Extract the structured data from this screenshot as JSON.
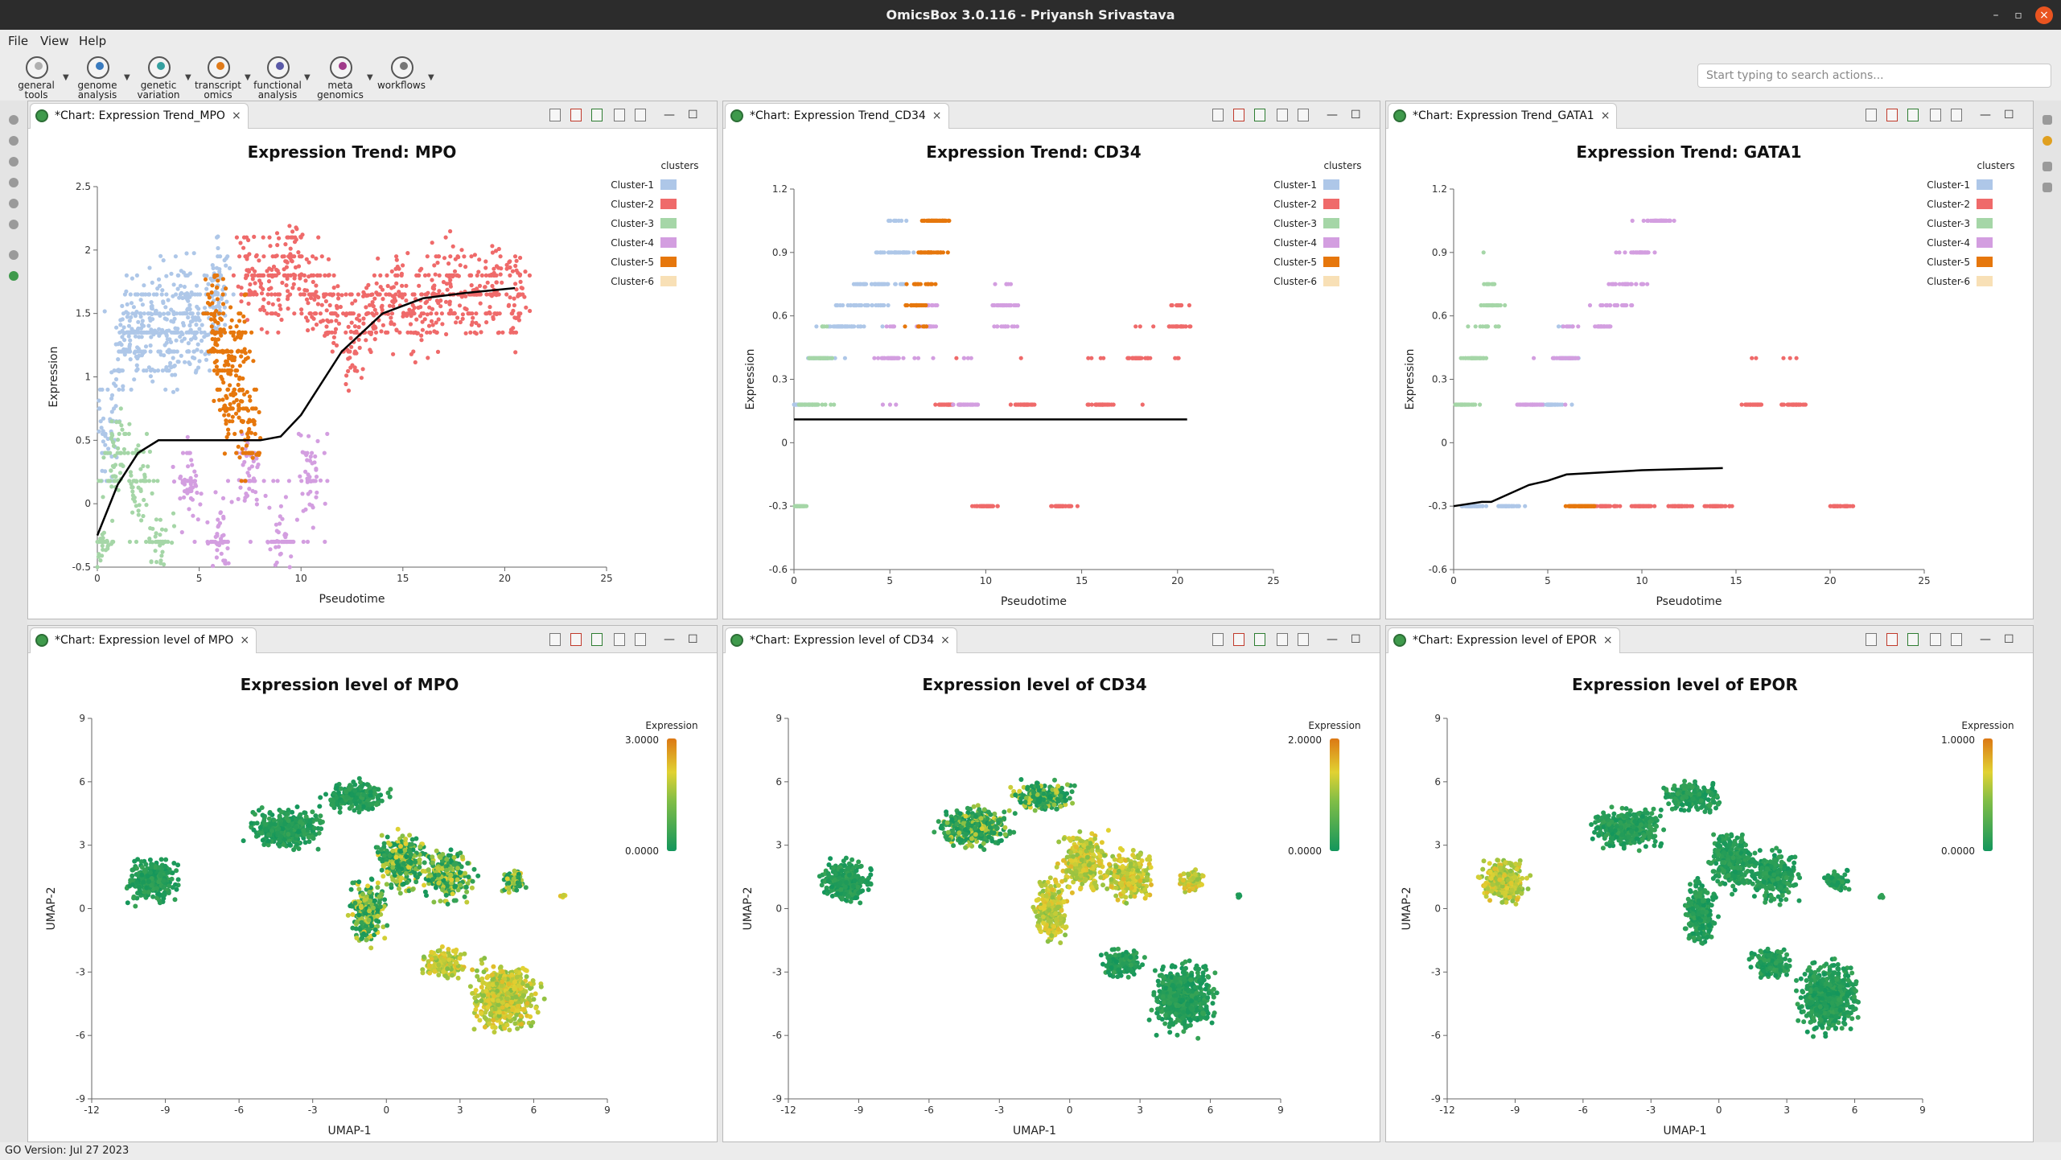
{
  "window": {
    "title": "OmicsBox 3.0.116 - Priyansh Srivastava"
  },
  "menu": [
    "File",
    "View",
    "Help"
  ],
  "toolbar": [
    {
      "l1": "general",
      "l2": "tools",
      "color": "#b0b0b0"
    },
    {
      "l1": "genome",
      "l2": "analysis",
      "color": "#3a7bbf"
    },
    {
      "l1": "genetic",
      "l2": "variation",
      "color": "#35a0a0"
    },
    {
      "l1": "transcript",
      "l2": "omics",
      "color": "#e07b1a"
    },
    {
      "l1": "functional",
      "l2": "analysis",
      "color": "#5a5aa8"
    },
    {
      "l1": "meta",
      "l2": "genomics",
      "color": "#a03a8a"
    },
    {
      "l1": "workflows",
      "l2": "",
      "color": "#777777"
    }
  ],
  "search": {
    "placeholder": "Start typing to search actions..."
  },
  "status": "GO Version: Jul 27 2023",
  "panels": [
    {
      "tab": "*Chart: Expression Trend_MPO"
    },
    {
      "tab": "*Chart: Expression Trend_CD34"
    },
    {
      "tab": "*Chart: Expression Trend_GATA1"
    },
    {
      "tab": "*Chart: Expression level of MPO"
    },
    {
      "tab": "*Chart: Expression level of CD34"
    },
    {
      "tab": "*Chart: Expression level of EPOR"
    }
  ],
  "chart_data": [
    {
      "type": "scatter",
      "title": "Expression Trend: MPO",
      "xlabel": "Pseudotime",
      "ylabel": "Expression",
      "xlim": [
        0,
        25
      ],
      "ylim": [
        -0.5,
        2.5
      ],
      "xticks": [
        "0",
        "5",
        "10",
        "15",
        "20",
        "25"
      ],
      "yticks": [
        "-0.5",
        "0",
        "0.5",
        "1",
        "1.5",
        "2",
        "2.5"
      ],
      "legend_title": "clusters",
      "legend_position": "top-right",
      "legend": [
        {
          "name": "Cluster-1",
          "color": "#aec7e8"
        },
        {
          "name": "Cluster-2",
          "color": "#ef6a6a"
        },
        {
          "name": "Cluster-3",
          "color": "#a5d6a7"
        },
        {
          "name": "Cluster-4",
          "color": "#d39ee0"
        },
        {
          "name": "Cluster-5",
          "color": "#e6770c"
        },
        {
          "name": "Cluster-6",
          "color": "#f8e0b6"
        }
      ],
      "series": [
        {
          "name": "Cluster-1",
          "x": [
            0.5,
            1.2,
            1.8,
            2.4,
            3.0,
            3.6,
            4.2,
            4.8,
            5.5,
            6.0
          ],
          "y": [
            0.55,
            1.2,
            1.4,
            1.3,
            1.5,
            1.25,
            1.6,
            1.35,
            1.5,
            1.7
          ]
        },
        {
          "name": "Cluster-2",
          "x": [
            7.5,
            8.5,
            9.5,
            10.5,
            11.5,
            12.5,
            13.5,
            14.5,
            15.5,
            16.5,
            17.5,
            18.5,
            19.5,
            20.5
          ],
          "y": [
            1.8,
            1.7,
            1.9,
            1.7,
            1.5,
            1.3,
            1.5,
            1.6,
            1.55,
            1.6,
            1.75,
            1.65,
            1.7,
            1.6
          ]
        },
        {
          "name": "Cluster-3",
          "x": [
            0.2,
            1.0,
            2.0,
            3.0
          ],
          "y": [
            -0.3,
            0.4,
            0.18,
            -0.3
          ]
        },
        {
          "name": "Cluster-4",
          "x": [
            4.5,
            6.0,
            7.5,
            9.0,
            10.5
          ],
          "y": [
            0.18,
            -0.3,
            0.18,
            -0.3,
            0.18
          ]
        },
        {
          "name": "Cluster-5",
          "x": [
            5.8,
            6.2,
            6.6,
            7.0,
            7.4
          ],
          "y": [
            1.5,
            1.1,
            0.8,
            1.3,
            0.55
          ]
        }
      ],
      "trend": {
        "x": [
          0,
          1,
          2,
          3,
          4,
          6,
          8,
          9,
          10,
          12,
          14,
          16,
          18,
          20.5
        ],
        "y": [
          -0.25,
          0.15,
          0.4,
          0.5,
          0.5,
          0.5,
          0.5,
          0.53,
          0.7,
          1.2,
          1.5,
          1.62,
          1.66,
          1.7
        ]
      }
    },
    {
      "type": "scatter",
      "title": "Expression Trend: CD34",
      "xlabel": "Pseudotime",
      "ylabel": "Expression",
      "xlim": [
        0,
        25
      ],
      "ylim": [
        -0.6,
        1.2
      ],
      "xticks": [
        "0",
        "5",
        "10",
        "15",
        "20",
        "25"
      ],
      "yticks": [
        "-0.6",
        "-0.3",
        "0",
        "0.3",
        "0.6",
        "0.9",
        "1.2"
      ],
      "legend_title": "clusters",
      "legend_position": "top-right",
      "legend": [
        {
          "name": "Cluster-1",
          "color": "#aec7e8"
        },
        {
          "name": "Cluster-2",
          "color": "#ef6a6a"
        },
        {
          "name": "Cluster-3",
          "color": "#a5d6a7"
        },
        {
          "name": "Cluster-4",
          "color": "#d39ee0"
        },
        {
          "name": "Cluster-5",
          "color": "#e6770c"
        },
        {
          "name": "Cluster-6",
          "color": "#f8e0b6"
        }
      ],
      "series": [
        {
          "name": "Cluster-1",
          "x": [
            0.5,
            1.5,
            2.5,
            3.5,
            4.5,
            5.5
          ],
          "y": [
            0.18,
            0.4,
            0.55,
            0.65,
            0.75,
            0.9
          ]
        },
        {
          "name": "Cluster-2",
          "x": [
            8,
            10,
            12,
            14,
            16,
            18,
            20
          ],
          "y": [
            0.18,
            -0.3,
            0.18,
            -0.3,
            0.18,
            0.4,
            0.55
          ]
        },
        {
          "name": "Cluster-3",
          "x": [
            0.2,
            0.8,
            1.4
          ],
          "y": [
            -0.3,
            0.18,
            0.4
          ]
        },
        {
          "name": "Cluster-4",
          "x": [
            5,
            7,
            9,
            11
          ],
          "y": [
            0.4,
            0.55,
            0.18,
            0.65
          ]
        },
        {
          "name": "Cluster-5",
          "x": [
            6.5,
            7.0,
            7.5
          ],
          "y": [
            0.65,
            0.9,
            1.05
          ]
        }
      ],
      "trend": {
        "x": [
          0,
          20.5
        ],
        "y": [
          0.11,
          0.11
        ]
      }
    },
    {
      "type": "scatter",
      "title": "Expression Trend: GATA1",
      "xlabel": "Pseudotime",
      "ylabel": "Expression",
      "xlim": [
        0,
        25
      ],
      "ylim": [
        -0.6,
        1.2
      ],
      "xticks": [
        "0",
        "5",
        "10",
        "15",
        "20",
        "25"
      ],
      "yticks": [
        "-0.6",
        "-0.3",
        "0",
        "0.3",
        "0.6",
        "0.9",
        "1.2"
      ],
      "legend_title": "clusters",
      "legend_position": "top-right",
      "legend": [
        {
          "name": "Cluster-1",
          "color": "#aec7e8"
        },
        {
          "name": "Cluster-2",
          "color": "#ef6a6a"
        },
        {
          "name": "Cluster-3",
          "color": "#a5d6a7"
        },
        {
          "name": "Cluster-4",
          "color": "#d39ee0"
        },
        {
          "name": "Cluster-5",
          "color": "#e6770c"
        },
        {
          "name": "Cluster-6",
          "color": "#f8e0b6"
        }
      ],
      "series": [
        {
          "name": "Cluster-1",
          "x": [
            1,
            3,
            5,
            6
          ],
          "y": [
            -0.3,
            -0.3,
            0.18,
            0.4
          ]
        },
        {
          "name": "Cluster-2",
          "x": [
            8,
            10,
            12,
            14,
            16,
            18,
            20.5
          ],
          "y": [
            -0.3,
            -0.3,
            -0.3,
            -0.3,
            0.18,
            0.18,
            -0.3
          ]
        },
        {
          "name": "Cluster-3",
          "x": [
            0.5,
            1.2,
            2.0
          ],
          "y": [
            0.18,
            0.4,
            0.65
          ]
        },
        {
          "name": "Cluster-4",
          "x": [
            4,
            6,
            8,
            9,
            10,
            11
          ],
          "y": [
            0.18,
            0.4,
            0.55,
            0.75,
            0.9,
            1.1
          ]
        },
        {
          "name": "Cluster-5",
          "x": [
            6.5,
            7.0
          ],
          "y": [
            -0.3,
            -0.3
          ]
        }
      ],
      "trend": {
        "x": [
          0,
          1.5,
          2,
          4,
          5,
          6,
          8,
          10,
          12,
          14.3
        ],
        "y": [
          -0.3,
          -0.28,
          -0.28,
          -0.2,
          -0.18,
          -0.15,
          -0.14,
          -0.13,
          -0.125,
          -0.12
        ]
      }
    },
    {
      "type": "scatter",
      "title": "Expression level of MPO",
      "xlabel": "UMAP-1",
      "ylabel": "UMAP-2",
      "xlim": [
        -12,
        9
      ],
      "ylim": [
        -9,
        9
      ],
      "xticks": [
        "-12",
        "-9",
        "-6",
        "-3",
        "0",
        "3",
        "6",
        "9"
      ],
      "yticks": [
        "-9",
        "-6",
        "-3",
        "0",
        "3",
        "6",
        "9"
      ],
      "colorbar": {
        "title": "Expression",
        "max": "3.0000",
        "min": "0.0000"
      },
      "high_region": "right"
    },
    {
      "type": "scatter",
      "title": "Expression level of CD34",
      "xlabel": "UMAP-1",
      "ylabel": "UMAP-2",
      "xlim": [
        -12,
        9
      ],
      "ylim": [
        -9,
        9
      ],
      "xticks": [
        "-12",
        "-9",
        "-6",
        "-3",
        "0",
        "3",
        "6",
        "9"
      ],
      "yticks": [
        "-9",
        "-6",
        "-3",
        "0",
        "3",
        "6",
        "9"
      ],
      "colorbar": {
        "title": "Expression",
        "max": "2.0000",
        "min": "0.0000"
      },
      "high_region": "middle"
    },
    {
      "type": "scatter",
      "title": "Expression level of EPOR",
      "xlabel": "UMAP-1",
      "ylabel": "UMAP-2",
      "xlim": [
        -12,
        9
      ],
      "ylim": [
        -9,
        9
      ],
      "xticks": [
        "-12",
        "-9",
        "-6",
        "-3",
        "0",
        "3",
        "6",
        "9"
      ],
      "yticks": [
        "-9",
        "-6",
        "-3",
        "0",
        "3",
        "6",
        "9"
      ],
      "colorbar": {
        "title": "Expression",
        "max": "1.0000",
        "min": "0.0000"
      },
      "high_region": "left"
    }
  ]
}
